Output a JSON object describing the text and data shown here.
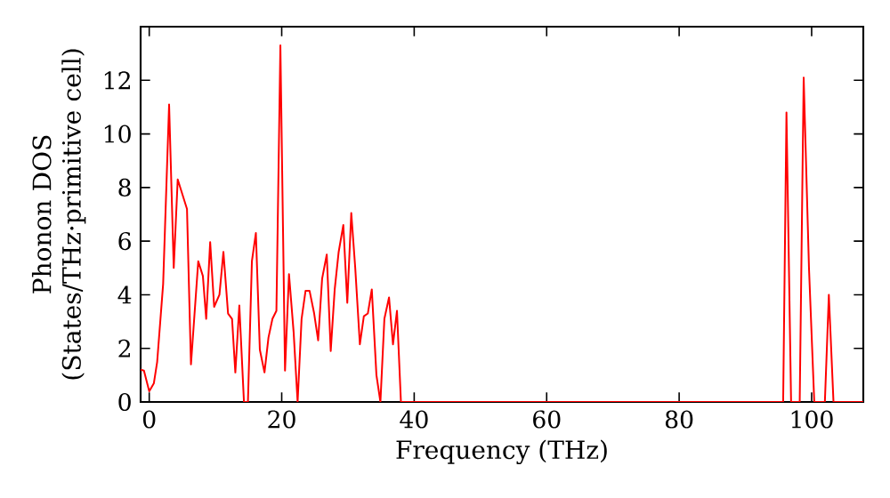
{
  "chart_data": {
    "type": "line",
    "xlabel": "Frequency (THz)",
    "ylabel": "Phonon DOS (States/THz·primitive cell)",
    "x": [
      -1.3,
      -0.8,
      0,
      0.7,
      1.2,
      2.1,
      3.0,
      3.7,
      4.3,
      5.7,
      6.3,
      7.4,
      8.1,
      8.6,
      9.2,
      9.8,
      10.6,
      11.2,
      11.9,
      12.5,
      13.0,
      13.6,
      14.3,
      14.9,
      15.5,
      16.1,
      16.7,
      17.4,
      18.0,
      18.6,
      19.2,
      19.8,
      20.5,
      21.1,
      21.8,
      22.4,
      23.0,
      23.6,
      24.2,
      24.9,
      25.5,
      26.1,
      26.8,
      27.4,
      28.0,
      28.6,
      29.3,
      29.9,
      30.5,
      31.1,
      31.8,
      32.4,
      33.0,
      33.6,
      34.3,
      34.9,
      35.5,
      36.2,
      36.8,
      37.4,
      38.0,
      95.7,
      96.2,
      96.9,
      98.2,
      98.8,
      99.6,
      100.4,
      102.0,
      102.6,
      103.3,
      107.8
    ],
    "series": [
      {
        "color": "#ff0000",
        "values": [
          1.2,
          1.17,
          0.4,
          0.7,
          1.5,
          4.4,
          11.1,
          5.0,
          8.3,
          7.2,
          1.4,
          5.25,
          4.7,
          3.1,
          5.96,
          3.55,
          4.0,
          5.6,
          3.3,
          3.1,
          1.1,
          3.6,
          0,
          0,
          5.25,
          6.3,
          1.95,
          1.1,
          2.4,
          3.1,
          3.4,
          13.3,
          1.17,
          4.77,
          2.6,
          0,
          3.1,
          4.15,
          4.15,
          3.3,
          2.3,
          4.6,
          5.5,
          1.9,
          4.2,
          5.6,
          6.6,
          3.7,
          7.05,
          5.0,
          2.15,
          3.2,
          3.3,
          4.2,
          1.0,
          0,
          3.1,
          3.9,
          2.15,
          3.4,
          0,
          0,
          10.8,
          0,
          0,
          12.1,
          5.0,
          0,
          0,
          4.0,
          0,
          0
        ]
      }
    ],
    "xlim": [
      -1.3,
      107.8
    ],
    "ylim": [
      0,
      14
    ],
    "xticks": [
      0,
      20,
      40,
      60,
      80,
      100
    ],
    "yticks": [
      0,
      2,
      4,
      6,
      8,
      10,
      12
    ],
    "marker": "none",
    "line_style": "solid"
  }
}
